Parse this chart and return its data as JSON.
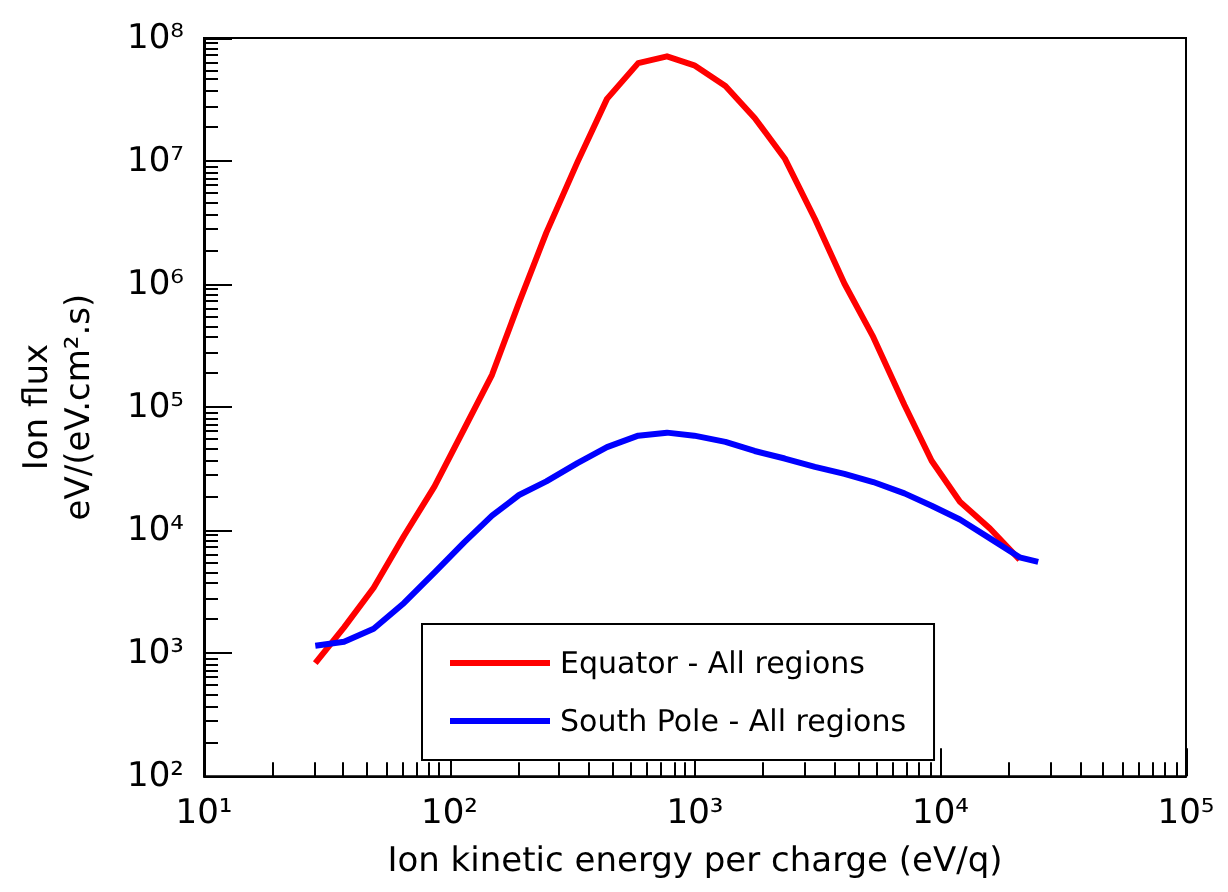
{
  "chart_data": {
    "type": "line",
    "xlabel": "Ion kinetic energy per charge (eV/q)",
    "ylabel": "Ion flux\neV/(eV.cm².s)",
    "log": "xy",
    "legend": "bottom",
    "grid": false,
    "marker": "none",
    "line_style": "solid",
    "xlim": [
      10,
      100000
    ],
    "ylim": [
      100,
      100000000
    ],
    "xticks": [
      {
        "value": 10,
        "label": "10¹"
      },
      {
        "value": 100,
        "label": "10²"
      },
      {
        "value": 1000,
        "label": "10³"
      },
      {
        "value": 10000,
        "label": "10⁴"
      },
      {
        "value": 100000,
        "label": "10⁵"
      }
    ],
    "yticks": [
      {
        "value": 100,
        "label": "10²"
      },
      {
        "value": 1000,
        "label": "10³"
      },
      {
        "value": 10000,
        "label": "10⁴"
      },
      {
        "value": 100000,
        "label": "10⁵"
      },
      {
        "value": 1000000,
        "label": "10⁶"
      },
      {
        "value": 10000000,
        "label": "10⁷"
      },
      {
        "value": 100000000,
        "label": "10⁸"
      }
    ],
    "series": [
      {
        "name": "Equator - All regions",
        "color": "#ff0000",
        "x": [
          28.4,
          37.2,
          49.1,
          65.3,
          86.8,
          115,
          149,
          192,
          248,
          332,
          438,
          587,
          769,
          993,
          1330,
          1750,
          2320,
          3080,
          4060,
          5320,
          7130,
          9200,
          12000,
          15900,
          21000
        ],
        "values": [
          830,
          1620,
          3400,
          9000,
          22600,
          67000,
          183000,
          706000,
          2620000,
          9800000,
          32000000,
          62500000,
          71000000,
          60000000,
          40800000,
          22400000,
          10500000,
          3380000,
          1010000,
          372000,
          104000,
          36600,
          17000,
          10300,
          5750
        ]
      },
      {
        "name": "South Pole - All regions",
        "color": "#0000ff",
        "x": [
          28.4,
          37.2,
          49.1,
          65.3,
          86.8,
          115,
          149,
          192,
          248,
          332,
          438,
          587,
          769,
          993,
          1330,
          1750,
          2320,
          3080,
          4060,
          5320,
          7130,
          9200,
          12000,
          15900,
          21000,
          25000
        ],
        "values": [
          1150,
          1240,
          1580,
          2560,
          4520,
          7980,
          13100,
          19300,
          24900,
          35100,
          47300,
          58600,
          62000,
          58600,
          52200,
          44000,
          38200,
          32700,
          28700,
          24600,
          19900,
          15800,
          12200,
          8570,
          6010,
          5520
        ]
      }
    ]
  }
}
